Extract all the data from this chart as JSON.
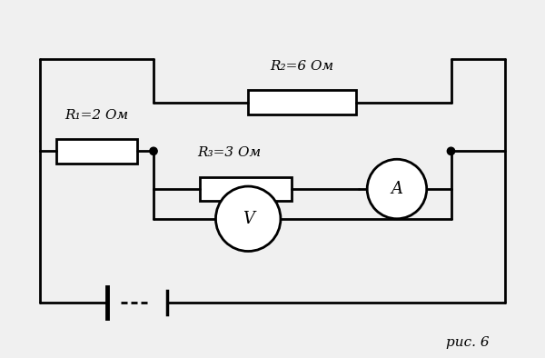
{
  "bg_color": "#f0f0f0",
  "line_color": "#000000",
  "line_width": 2.0,
  "fig_width": 6.0,
  "fig_height": 3.94,
  "dpi": 100,
  "labels": {
    "R1": "R₁=2 Ом",
    "R2": "R₂=6 Ом",
    "R3": "R₃=3 Ом",
    "fig": "рис. 6"
  },
  "font_size_labels": 11,
  "font_size_fig": 11
}
